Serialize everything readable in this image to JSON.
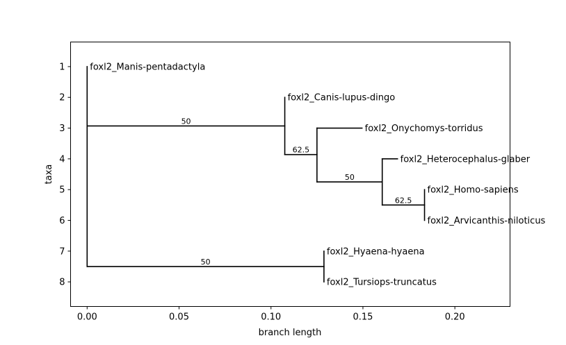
{
  "chart_data": {
    "type": "phylogenetic-tree",
    "xlabel": "branch length",
    "ylabel": "taxa",
    "xlim": [
      -0.009,
      0.23
    ],
    "ylim": [
      8.8,
      0.2
    ],
    "x_ticks": [
      0.0,
      0.05,
      0.1,
      0.15,
      0.2
    ],
    "x_tick_labels": [
      "0.00",
      "0.05",
      "0.10",
      "0.15",
      "0.20"
    ],
    "y_ticks": [
      1,
      2,
      3,
      4,
      5,
      6,
      7,
      8
    ],
    "y_tick_labels": [
      "1",
      "2",
      "3",
      "4",
      "5",
      "6",
      "7",
      "8"
    ],
    "line_color": "#000000",
    "taxa": [
      {
        "label": "foxl2_Manis-pentadactyla",
        "x": 0.0,
        "y": 1
      },
      {
        "label": "foxl2_Canis-lupus-dingo",
        "x": 0.1075,
        "y": 2
      },
      {
        "label": "foxl2_Onychomys-torridus",
        "x": 0.1495,
        "y": 3
      },
      {
        "label": "foxl2_Heterocephalus-glaber",
        "x": 0.1688,
        "y": 4
      },
      {
        "label": "foxl2_Homo-sapiens",
        "x": 0.1835,
        "y": 5
      },
      {
        "label": "foxl2_Arvicanthis-niloticus",
        "x": 0.1835,
        "y": 6
      },
      {
        "label": "foxl2_Hyaena-hyaena",
        "x": 0.1288,
        "y": 7
      },
      {
        "label": "foxl2_Tursiops-truncatus",
        "x": 0.1288,
        "y": 8
      }
    ],
    "branches": [
      {
        "x1": 0.0,
        "x2": 0.0,
        "y1": 1,
        "y2": 7.5
      },
      {
        "x1": 0.0,
        "x2": 0.1075,
        "y1": 2.93,
        "y2": 2.93
      },
      {
        "x1": 0.1075,
        "x2": 0.1075,
        "y1": 2.0,
        "y2": 3.86
      },
      {
        "x1": 0.1075,
        "x2": 0.125,
        "y1": 3.86,
        "y2": 3.86
      },
      {
        "x1": 0.125,
        "x2": 0.125,
        "y1": 3.0,
        "y2": 4.75
      },
      {
        "x1": 0.125,
        "x2": 0.1495,
        "y1": 3.0,
        "y2": 3.0
      },
      {
        "x1": 0.125,
        "x2": 0.1605,
        "y1": 4.75,
        "y2": 4.75
      },
      {
        "x1": 0.1605,
        "x2": 0.1605,
        "y1": 4.0,
        "y2": 5.5
      },
      {
        "x1": 0.1605,
        "x2": 0.1688,
        "y1": 4.0,
        "y2": 4.0
      },
      {
        "x1": 0.1605,
        "x2": 0.1835,
        "y1": 5.5,
        "y2": 5.5
      },
      {
        "x1": 0.1835,
        "x2": 0.1835,
        "y1": 5.0,
        "y2": 6.0
      },
      {
        "x1": 0.0,
        "x2": 0.1288,
        "y1": 7.5,
        "y2": 7.5
      },
      {
        "x1": 0.1288,
        "x2": 0.1288,
        "y1": 7.0,
        "y2": 8.0
      }
    ],
    "support_values": [
      {
        "label": "50",
        "x": 0.0538,
        "y": 2.93
      },
      {
        "label": "62.5",
        "x": 0.1163,
        "y": 3.86
      },
      {
        "label": "50",
        "x": 0.1428,
        "y": 4.75
      },
      {
        "label": "62.5",
        "x": 0.172,
        "y": 5.5
      },
      {
        "label": "50",
        "x": 0.0644,
        "y": 7.5
      }
    ]
  }
}
